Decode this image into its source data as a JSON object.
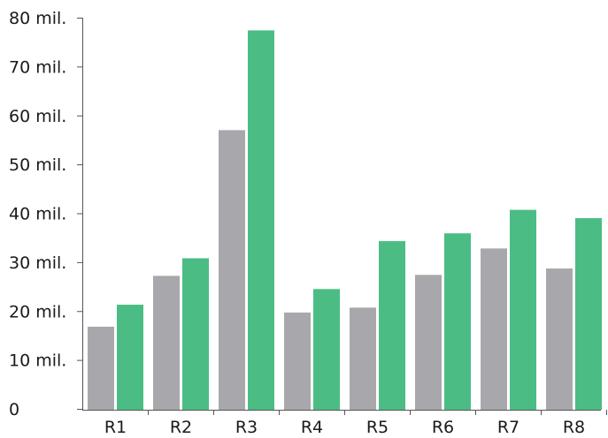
{
  "chart_data": {
    "type": "bar",
    "title": "",
    "xlabel": "",
    "ylabel": "",
    "categories": [
      "R1",
      "R2",
      "R3",
      "R4",
      "R5",
      "R6",
      "R7",
      "R8"
    ],
    "series": [
      {
        "color": "#a8a8ac",
        "values": [
          16.8,
          27.2,
          57.0,
          19.7,
          20.7,
          27.4,
          32.8,
          28.7
        ]
      },
      {
        "color": "#4bbd84",
        "values": [
          21.3,
          30.8,
          77.4,
          24.5,
          34.3,
          35.9,
          40.7,
          39.0
        ]
      }
    ],
    "ylim": [
      0,
      80
    ],
    "y_ticks": [
      {
        "value": 0,
        "label": "0"
      },
      {
        "value": 10,
        "label": "10 mil."
      },
      {
        "value": 20,
        "label": "20 mil."
      },
      {
        "value": 30,
        "label": "30 mil."
      },
      {
        "value": 40,
        "label": "40 mil."
      },
      {
        "value": 50,
        "label": "50 mil."
      },
      {
        "value": 60,
        "label": "60 mil."
      },
      {
        "value": 70,
        "label": "70 mil."
      },
      {
        "value": 80,
        "label": "80 mil."
      }
    ],
    "grid": false,
    "legend": "none"
  }
}
